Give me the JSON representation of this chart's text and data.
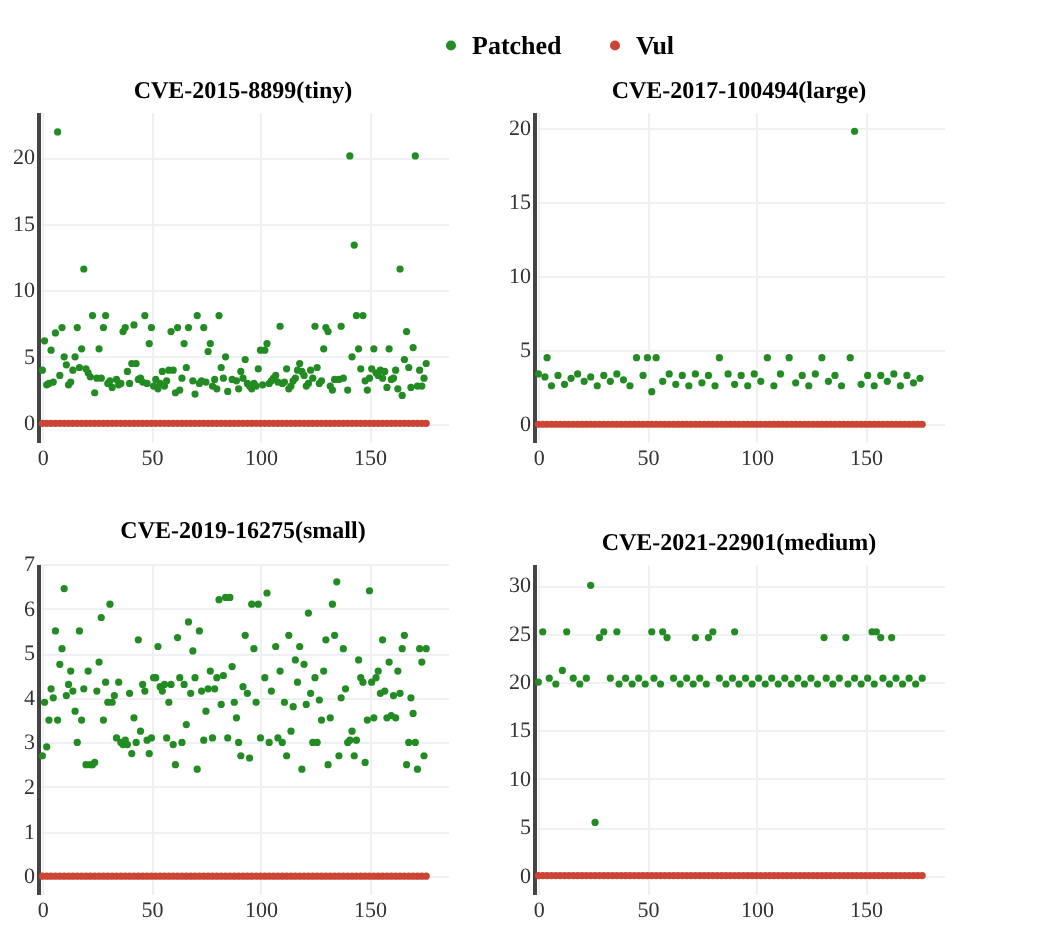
{
  "chart_data": [
    {
      "type": "scatter",
      "title": "CVE-2015-8899(tiny)",
      "legend": "top",
      "grid": true,
      "marker": "circle",
      "xlim": [
        -2,
        186
      ],
      "xticks": [
        0,
        50,
        100,
        150
      ],
      "ylim": [
        -1.4,
        23.4
      ],
      "yticks": [
        0,
        5,
        10,
        15,
        20
      ],
      "series": [
        {
          "name": "Patched",
          "color": "#228b22",
          "x": [
            0,
            1,
            2,
            3,
            4,
            5,
            6,
            7,
            8,
            9,
            10,
            11,
            12,
            13,
            14,
            15,
            16,
            17,
            18,
            19,
            20,
            21,
            22,
            23,
            24,
            25,
            26,
            27,
            28,
            29,
            30,
            31,
            32,
            34,
            35,
            36,
            37,
            38,
            39,
            40,
            41,
            42,
            43,
            44,
            45,
            46,
            47,
            48,
            49,
            50,
            51,
            52,
            53,
            54,
            55,
            56,
            57,
            58,
            59,
            60,
            61,
            62,
            63,
            64,
            65,
            66,
            67,
            69,
            70,
            71,
            72,
            73,
            74,
            75,
            76,
            77,
            78,
            79,
            80,
            81,
            82,
            83,
            84,
            85,
            87,
            89,
            90,
            91,
            92,
            93,
            94,
            95,
            96,
            97,
            98,
            99,
            100,
            101,
            102,
            103,
            104,
            105,
            106,
            107,
            108,
            109,
            110,
            111,
            112,
            113,
            114,
            115,
            116,
            117,
            118,
            119,
            120,
            121,
            122,
            123,
            124,
            125,
            126,
            127,
            128,
            129,
            130,
            131,
            132,
            133,
            134,
            136,
            137,
            138,
            140,
            141,
            142,
            143,
            144,
            145,
            146,
            147,
            148,
            149,
            150,
            151,
            152,
            153,
            154,
            155,
            156,
            157,
            158,
            159,
            160,
            161,
            162,
            163,
            164,
            165,
            166,
            167,
            168,
            169,
            170,
            171,
            172,
            173,
            174,
            175,
            176
          ],
          "values": [
            4.0,
            6.2,
            2.9,
            3.0,
            5.5,
            3.1,
            6.8,
            21.9,
            3.6,
            7.2,
            5.0,
            4.4,
            2.9,
            3.1,
            4.0,
            5.0,
            7.2,
            4.2,
            5.6,
            11.6,
            4.1,
            3.8,
            3.5,
            8.1,
            2.3,
            3.4,
            5.6,
            3.4,
            7.2,
            8.1,
            3.0,
            3.2,
            2.7,
            3.3,
            2.9,
            3.0,
            6.9,
            7.2,
            3.9,
            3.0,
            4.5,
            7.4,
            4.5,
            3.3,
            3.4,
            3.1,
            8.1,
            3.0,
            6.0,
            7.2,
            2.8,
            3.3,
            2.6,
            3.0,
            3.9,
            2.8,
            3.2,
            4.0,
            6.9,
            4.0,
            2.3,
            7.2,
            2.5,
            3.4,
            6.0,
            4.2,
            7.2,
            3.2,
            2.2,
            8.1,
            3.0,
            3.2,
            7.2,
            3.1,
            5.4,
            6.0,
            2.8,
            3.3,
            2.6,
            8.1,
            4.2,
            3.4,
            5.0,
            2.4,
            3.3,
            3.2,
            2.6,
            3.9,
            3.4,
            4.8,
            3.0,
            2.8,
            2.6,
            3.0,
            2.8,
            4.1,
            5.5,
            2.9,
            5.5,
            6.0,
            3.0,
            3.2,
            3.4,
            3.6,
            3.1,
            7.3,
            3.0,
            3.1,
            4.1,
            2.6,
            2.8,
            3.2,
            3.4,
            4.0,
            4.5,
            3.9,
            3.6,
            2.8,
            3.0,
            4.0,
            3.4,
            7.3,
            4.2,
            3.0,
            3.2,
            5.6,
            7.2,
            6.9,
            2.8,
            2.5,
            3.3,
            3.3,
            7.3,
            3.4,
            2.5,
            20.1,
            5.0,
            13.4,
            8.1,
            5.6,
            4.1,
            8.1,
            3.2,
            2.5,
            3.4,
            4.1,
            5.6,
            3.8,
            3.6,
            4.0,
            3.4,
            3.9,
            2.7,
            5.6,
            3.3,
            3.4,
            4.0,
            2.6,
            11.6,
            2.1,
            4.8,
            6.9,
            4.2,
            2.7,
            5.7,
            20.1,
            2.8,
            4.0,
            2.8,
            3.4,
            4.5
          ]
        },
        {
          "name": "Vul",
          "color": "#cc4433",
          "x": [
            0,
            2,
            4,
            6,
            8,
            10,
            12,
            14,
            16,
            18,
            20,
            22,
            24,
            26,
            28,
            30,
            32,
            34,
            36,
            38,
            40,
            42,
            44,
            46,
            48,
            50,
            52,
            54,
            56,
            58,
            60,
            62,
            64,
            66,
            68,
            70,
            72,
            74,
            76,
            78,
            80,
            82,
            84,
            86,
            88,
            90,
            92,
            94,
            96,
            98,
            100,
            102,
            104,
            106,
            108,
            110,
            112,
            114,
            116,
            118,
            120,
            122,
            124,
            126,
            128,
            130,
            132,
            134,
            136,
            138,
            140,
            142,
            144,
            146,
            148,
            150,
            152,
            154,
            156,
            158,
            160,
            162,
            164,
            166,
            168,
            170,
            172,
            174,
            176
          ],
          "values": [
            0,
            0,
            0,
            0,
            0,
            0,
            0,
            0,
            0,
            0,
            0,
            0,
            0,
            0,
            0,
            0,
            0,
            0,
            0,
            0,
            0,
            0,
            0,
            0,
            0,
            0,
            0,
            0,
            0,
            0,
            0,
            0,
            0,
            0,
            0,
            0,
            0,
            0,
            0,
            0,
            0,
            0,
            0,
            0,
            0,
            0,
            0,
            0,
            0,
            0,
            0,
            0,
            0,
            0,
            0,
            0,
            0,
            0,
            0,
            0,
            0,
            0,
            0,
            0,
            0,
            0,
            0,
            0,
            0,
            0,
            0,
            0,
            0,
            0,
            0,
            0,
            0,
            0,
            0,
            0,
            0,
            0,
            0,
            0,
            0,
            0,
            0,
            0,
            0
          ]
        }
      ]
    },
    {
      "type": "scatter",
      "title": "CVE-2017-100494(large)",
      "legend": "top",
      "grid": true,
      "marker": "circle",
      "xlim": [
        -2,
        186
      ],
      "xticks": [
        0,
        50,
        100,
        150
      ],
      "ylim": [
        -1.2,
        21.1
      ],
      "yticks": [
        0,
        5,
        10,
        15,
        20
      ],
      "series": [
        {
          "name": "Patched",
          "color": "#228b22",
          "x": [
            0,
            3,
            4,
            6,
            9,
            12,
            15,
            18,
            21,
            24,
            27,
            30,
            33,
            36,
            39,
            42,
            45,
            48,
            50,
            52,
            54,
            57,
            60,
            63,
            66,
            69,
            72,
            75,
            78,
            81,
            83,
            87,
            90,
            93,
            96,
            99,
            102,
            105,
            108,
            111,
            115,
            118,
            121,
            124,
            127,
            130,
            133,
            136,
            139,
            143,
            145,
            148,
            151,
            154,
            157,
            160,
            163,
            166,
            169,
            172,
            175
          ],
          "values": [
            3.4,
            3.2,
            4.5,
            2.6,
            3.3,
            2.7,
            3.1,
            3.4,
            2.9,
            3.2,
            2.6,
            3.3,
            2.9,
            3.4,
            3.0,
            2.6,
            4.5,
            3.3,
            4.5,
            2.2,
            4.5,
            2.9,
            3.4,
            2.7,
            3.3,
            2.6,
            3.4,
            2.8,
            3.3,
            2.6,
            4.5,
            3.4,
            2.7,
            3.3,
            2.6,
            3.4,
            2.9,
            4.5,
            2.6,
            3.4,
            4.5,
            2.8,
            3.3,
            2.6,
            3.4,
            4.5,
            2.9,
            3.3,
            2.6,
            4.5,
            19.8,
            2.7,
            3.3,
            2.6,
            3.3,
            2.9,
            3.4,
            2.6,
            3.3,
            2.8,
            3.1
          ]
        },
        {
          "name": "Vul",
          "color": "#cc4433",
          "x": [
            0,
            2,
            4,
            6,
            8,
            10,
            12,
            14,
            16,
            18,
            20,
            22,
            24,
            26,
            28,
            30,
            32,
            34,
            36,
            38,
            40,
            42,
            44,
            46,
            48,
            50,
            52,
            54,
            56,
            58,
            60,
            62,
            64,
            66,
            68,
            70,
            72,
            74,
            76,
            78,
            80,
            82,
            84,
            86,
            88,
            90,
            92,
            94,
            96,
            98,
            100,
            102,
            104,
            106,
            108,
            110,
            112,
            114,
            116,
            118,
            120,
            122,
            124,
            126,
            128,
            130,
            132,
            134,
            136,
            138,
            140,
            142,
            144,
            146,
            148,
            150,
            152,
            154,
            156,
            158,
            160,
            162,
            164,
            166,
            168,
            170,
            172,
            174,
            176
          ],
          "values": [
            0,
            0,
            0,
            0,
            0,
            0,
            0,
            0,
            0,
            0,
            0,
            0,
            0,
            0,
            0,
            0,
            0,
            0,
            0,
            0,
            0,
            0,
            0,
            0,
            0,
            0,
            0,
            0,
            0,
            0,
            0,
            0,
            0,
            0,
            0,
            0,
            0,
            0,
            0,
            0,
            0,
            0,
            0,
            0,
            0,
            0,
            0,
            0,
            0,
            0,
            0,
            0,
            0,
            0,
            0,
            0,
            0,
            0,
            0,
            0,
            0,
            0,
            0,
            0,
            0,
            0,
            0,
            0,
            0,
            0,
            0,
            0,
            0,
            0,
            0,
            0,
            0,
            0,
            0,
            0,
            0,
            0,
            0,
            0,
            0,
            0,
            0,
            0,
            0
          ]
        }
      ]
    },
    {
      "type": "scatter",
      "title": "CVE-2019-16275(small)",
      "legend": "top",
      "grid": true,
      "marker": "circle",
      "xlim": [
        -2,
        186
      ],
      "xticks": [
        0,
        50,
        100,
        150
      ],
      "ylim": [
        -0.4,
        7
      ],
      "yticks": [
        0,
        1,
        2,
        3,
        4,
        5,
        6,
        7
      ],
      "series": [
        {
          "name": "Patched",
          "color": "#228b22",
          "x": [
            0,
            1,
            2,
            3,
            4,
            5,
            6,
            7,
            8,
            9,
            10,
            11,
            12,
            13,
            14,
            15,
            16,
            17,
            18,
            19,
            20,
            21,
            22,
            23,
            24,
            25,
            26,
            27,
            28,
            29,
            30,
            31,
            32,
            33,
            34,
            35,
            36,
            37,
            38,
            39,
            40,
            41,
            42,
            43,
            44,
            45,
            46,
            47,
            48,
            49,
            50,
            51,
            52,
            53,
            54,
            55,
            56,
            57,
            58,
            59,
            60,
            61,
            62,
            63,
            64,
            65,
            66,
            67,
            68,
            69,
            70,
            71,
            72,
            73,
            74,
            75,
            76,
            77,
            78,
            79,
            80,
            81,
            82,
            83,
            84,
            85,
            86,
            87,
            88,
            89,
            90,
            91,
            92,
            93,
            94,
            95,
            96,
            97,
            98,
            99,
            100,
            102,
            103,
            104,
            105,
            107,
            108,
            109,
            110,
            111,
            112,
            113,
            114,
            115,
            116,
            117,
            118,
            119,
            120,
            121,
            122,
            123,
            124,
            125,
            126,
            127,
            128,
            129,
            130,
            131,
            132,
            133,
            134,
            135,
            136,
            137,
            138,
            139,
            140,
            141,
            142,
            143,
            144,
            145,
            146,
            147,
            148,
            149,
            150,
            151,
            152,
            153,
            154,
            155,
            156,
            157,
            158,
            159,
            160,
            161,
            162,
            163,
            164,
            165,
            166,
            167,
            168,
            169,
            170,
            171,
            172,
            173,
            174,
            175,
            176
          ],
          "values": [
            2.7,
            3.9,
            2.9,
            3.5,
            4.2,
            4.0,
            5.5,
            3.5,
            4.75,
            5.1,
            6.45,
            4.05,
            4.3,
            4.6,
            4.15,
            3.7,
            3.0,
            5.5,
            3.5,
            4.2,
            2.5,
            4.6,
            2.5,
            2.5,
            2.55,
            4.15,
            4.8,
            5.8,
            3.5,
            4.35,
            3.9,
            6.1,
            3.9,
            4.05,
            3.1,
            4.35,
            3.0,
            2.95,
            3.05,
            2.95,
            4.1,
            2.75,
            3.55,
            3.0,
            5.3,
            3.25,
            4.3,
            4.15,
            3.05,
            2.75,
            3.1,
            4.45,
            4.45,
            5.15,
            4.25,
            4.15,
            4.3,
            3.1,
            3.9,
            4.3,
            2.95,
            2.5,
            5.35,
            4.45,
            3.0,
            4.3,
            3.4,
            5.7,
            4.1,
            5.05,
            4.45,
            2.4,
            5.5,
            4.15,
            3.05,
            3.7,
            4.2,
            4.6,
            3.1,
            4.2,
            4.45,
            6.2,
            3.85,
            4.5,
            6.25,
            3.1,
            6.25,
            4.7,
            3.9,
            3.55,
            3.0,
            2.7,
            4.25,
            5.4,
            4.1,
            2.65,
            6.1,
            5.1,
            3.9,
            6.1,
            3.1,
            4.45,
            6.35,
            3.0,
            4.15,
            5.15,
            3.1,
            4.6,
            3.0,
            3.9,
            2.7,
            5.4,
            3.25,
            3.8,
            4.85,
            4.35,
            5.15,
            2.4,
            4.75,
            3.85,
            5.9,
            4.1,
            3.0,
            4.45,
            3.0,
            3.95,
            3.5,
            4.6,
            5.3,
            2.5,
            3.55,
            6.1,
            5.4,
            6.6,
            2.7,
            4.0,
            5.1,
            4.2,
            3.0,
            3.05,
            3.25,
            2.7,
            3.05,
            4.85,
            4.45,
            4.35,
            2.55,
            3.5,
            6.4,
            4.35,
            3.55,
            4.45,
            4.6,
            4.1,
            5.3,
            4.15,
            3.55,
            4.8,
            3.6,
            4.05,
            3.55,
            4.6,
            4.1,
            5.1,
            5.4,
            2.5,
            3.0,
            4.0,
            3.65,
            3.0,
            2.4,
            5.1,
            4.8,
            2.7,
            5.1
          ]
        },
        {
          "name": "Vul",
          "color": "#cc4433",
          "x": [
            0,
            2,
            4,
            6,
            8,
            10,
            12,
            14,
            16,
            18,
            20,
            22,
            24,
            26,
            28,
            30,
            32,
            34,
            36,
            38,
            40,
            42,
            44,
            46,
            48,
            50,
            52,
            54,
            56,
            58,
            60,
            62,
            64,
            66,
            68,
            70,
            72,
            74,
            76,
            78,
            80,
            82,
            84,
            86,
            88,
            90,
            92,
            94,
            96,
            98,
            100,
            102,
            104,
            106,
            108,
            110,
            112,
            114,
            116,
            118,
            120,
            122,
            124,
            126,
            128,
            130,
            132,
            134,
            136,
            138,
            140,
            142,
            144,
            146,
            148,
            150,
            152,
            154,
            156,
            158,
            160,
            162,
            164,
            166,
            168,
            170,
            172,
            174,
            176
          ],
          "values": [
            0,
            0,
            0,
            0,
            0,
            0,
            0,
            0,
            0,
            0,
            0,
            0,
            0,
            0,
            0,
            0,
            0,
            0,
            0,
            0,
            0,
            0,
            0,
            0,
            0,
            0,
            0,
            0,
            0,
            0,
            0,
            0,
            0,
            0,
            0,
            0,
            0,
            0,
            0,
            0,
            0,
            0,
            0,
            0,
            0,
            0,
            0,
            0,
            0,
            0,
            0,
            0,
            0,
            0,
            0,
            0,
            0,
            0,
            0,
            0,
            0,
            0,
            0,
            0,
            0,
            0,
            0,
            0,
            0,
            0,
            0,
            0,
            0,
            0,
            0,
            0,
            0,
            0,
            0,
            0,
            0,
            0,
            0,
            0,
            0,
            0,
            0,
            0,
            0
          ]
        }
      ]
    },
    {
      "type": "scatter",
      "title": "CVE-2021-22901(medium)",
      "legend": "top",
      "grid": true,
      "marker": "circle",
      "xlim": [
        -2,
        186
      ],
      "xticks": [
        0,
        50,
        100,
        150
      ],
      "ylim": [
        -1.9,
        32.2
      ],
      "yticks": [
        0,
        5,
        10,
        15,
        20,
        25,
        30
      ],
      "series": [
        {
          "name": "Patched",
          "color": "#228b22",
          "x": [
            0,
            2,
            5,
            8,
            11,
            13,
            16,
            19,
            22,
            24,
            26,
            28,
            30,
            33,
            36,
            37,
            40,
            43,
            46,
            49,
            52,
            53,
            56,
            57,
            59,
            62,
            65,
            68,
            71,
            72,
            74,
            77,
            78,
            80,
            83,
            86,
            89,
            90,
            92,
            95,
            98,
            101,
            104,
            107,
            110,
            113,
            116,
            119,
            122,
            125,
            128,
            131,
            132,
            135,
            138,
            141,
            142,
            145,
            148,
            151,
            153,
            154,
            155,
            157,
            158,
            161,
            162,
            164,
            167,
            170,
            173,
            176
          ],
          "values": [
            20.0,
            25.2,
            20.4,
            19.8,
            21.2,
            25.2,
            20.4,
            19.8,
            20.4,
            30.0,
            5.5,
            24.6,
            25.2,
            20.4,
            25.2,
            19.8,
            20.4,
            19.8,
            20.4,
            19.8,
            25.2,
            20.4,
            19.8,
            25.2,
            24.6,
            20.4,
            19.8,
            20.4,
            19.8,
            24.6,
            20.4,
            19.8,
            24.6,
            25.2,
            20.4,
            19.8,
            20.4,
            25.2,
            19.8,
            20.4,
            19.8,
            20.4,
            19.8,
            20.4,
            19.8,
            20.4,
            19.8,
            20.4,
            19.8,
            20.4,
            19.8,
            24.6,
            20.4,
            19.8,
            20.4,
            24.6,
            19.8,
            20.4,
            19.8,
            20.4,
            25.2,
            19.8,
            25.2,
            24.6,
            20.4,
            19.8,
            24.6,
            20.4,
            19.8,
            20.4,
            19.8,
            20.4
          ]
        },
        {
          "name": "Vul",
          "color": "#cc4433",
          "x": [
            0,
            2,
            4,
            6,
            8,
            10,
            12,
            14,
            16,
            18,
            20,
            22,
            24,
            26,
            28,
            30,
            32,
            34,
            36,
            38,
            40,
            42,
            44,
            46,
            48,
            50,
            52,
            54,
            56,
            58,
            60,
            62,
            64,
            66,
            68,
            70,
            72,
            74,
            76,
            78,
            80,
            82,
            84,
            86,
            88,
            90,
            92,
            94,
            96,
            98,
            100,
            102,
            104,
            106,
            108,
            110,
            112,
            114,
            116,
            118,
            120,
            122,
            124,
            126,
            128,
            130,
            132,
            134,
            136,
            138,
            140,
            142,
            144,
            146,
            148,
            150,
            152,
            154,
            156,
            158,
            160,
            162,
            164,
            166,
            168,
            170,
            172,
            174,
            176
          ],
          "values": [
            0,
            0,
            0,
            0,
            0,
            0,
            0,
            0,
            0,
            0,
            0,
            0,
            0,
            0,
            0,
            0,
            0,
            0,
            0,
            0,
            0,
            0,
            0,
            0,
            0,
            0,
            0,
            0,
            0,
            0,
            0,
            0,
            0,
            0,
            0,
            0,
            0,
            0,
            0,
            0,
            0,
            0,
            0,
            0,
            0,
            0,
            0,
            0,
            0,
            0,
            0,
            0,
            0,
            0,
            0,
            0,
            0,
            0,
            0,
            0,
            0,
            0,
            0,
            0,
            0,
            0,
            0,
            0,
            0,
            0,
            0,
            0,
            0,
            0,
            0,
            0,
            0,
            0,
            0,
            0,
            0,
            0,
            0,
            0,
            0,
            0,
            0,
            0,
            0
          ]
        }
      ]
    }
  ]
}
